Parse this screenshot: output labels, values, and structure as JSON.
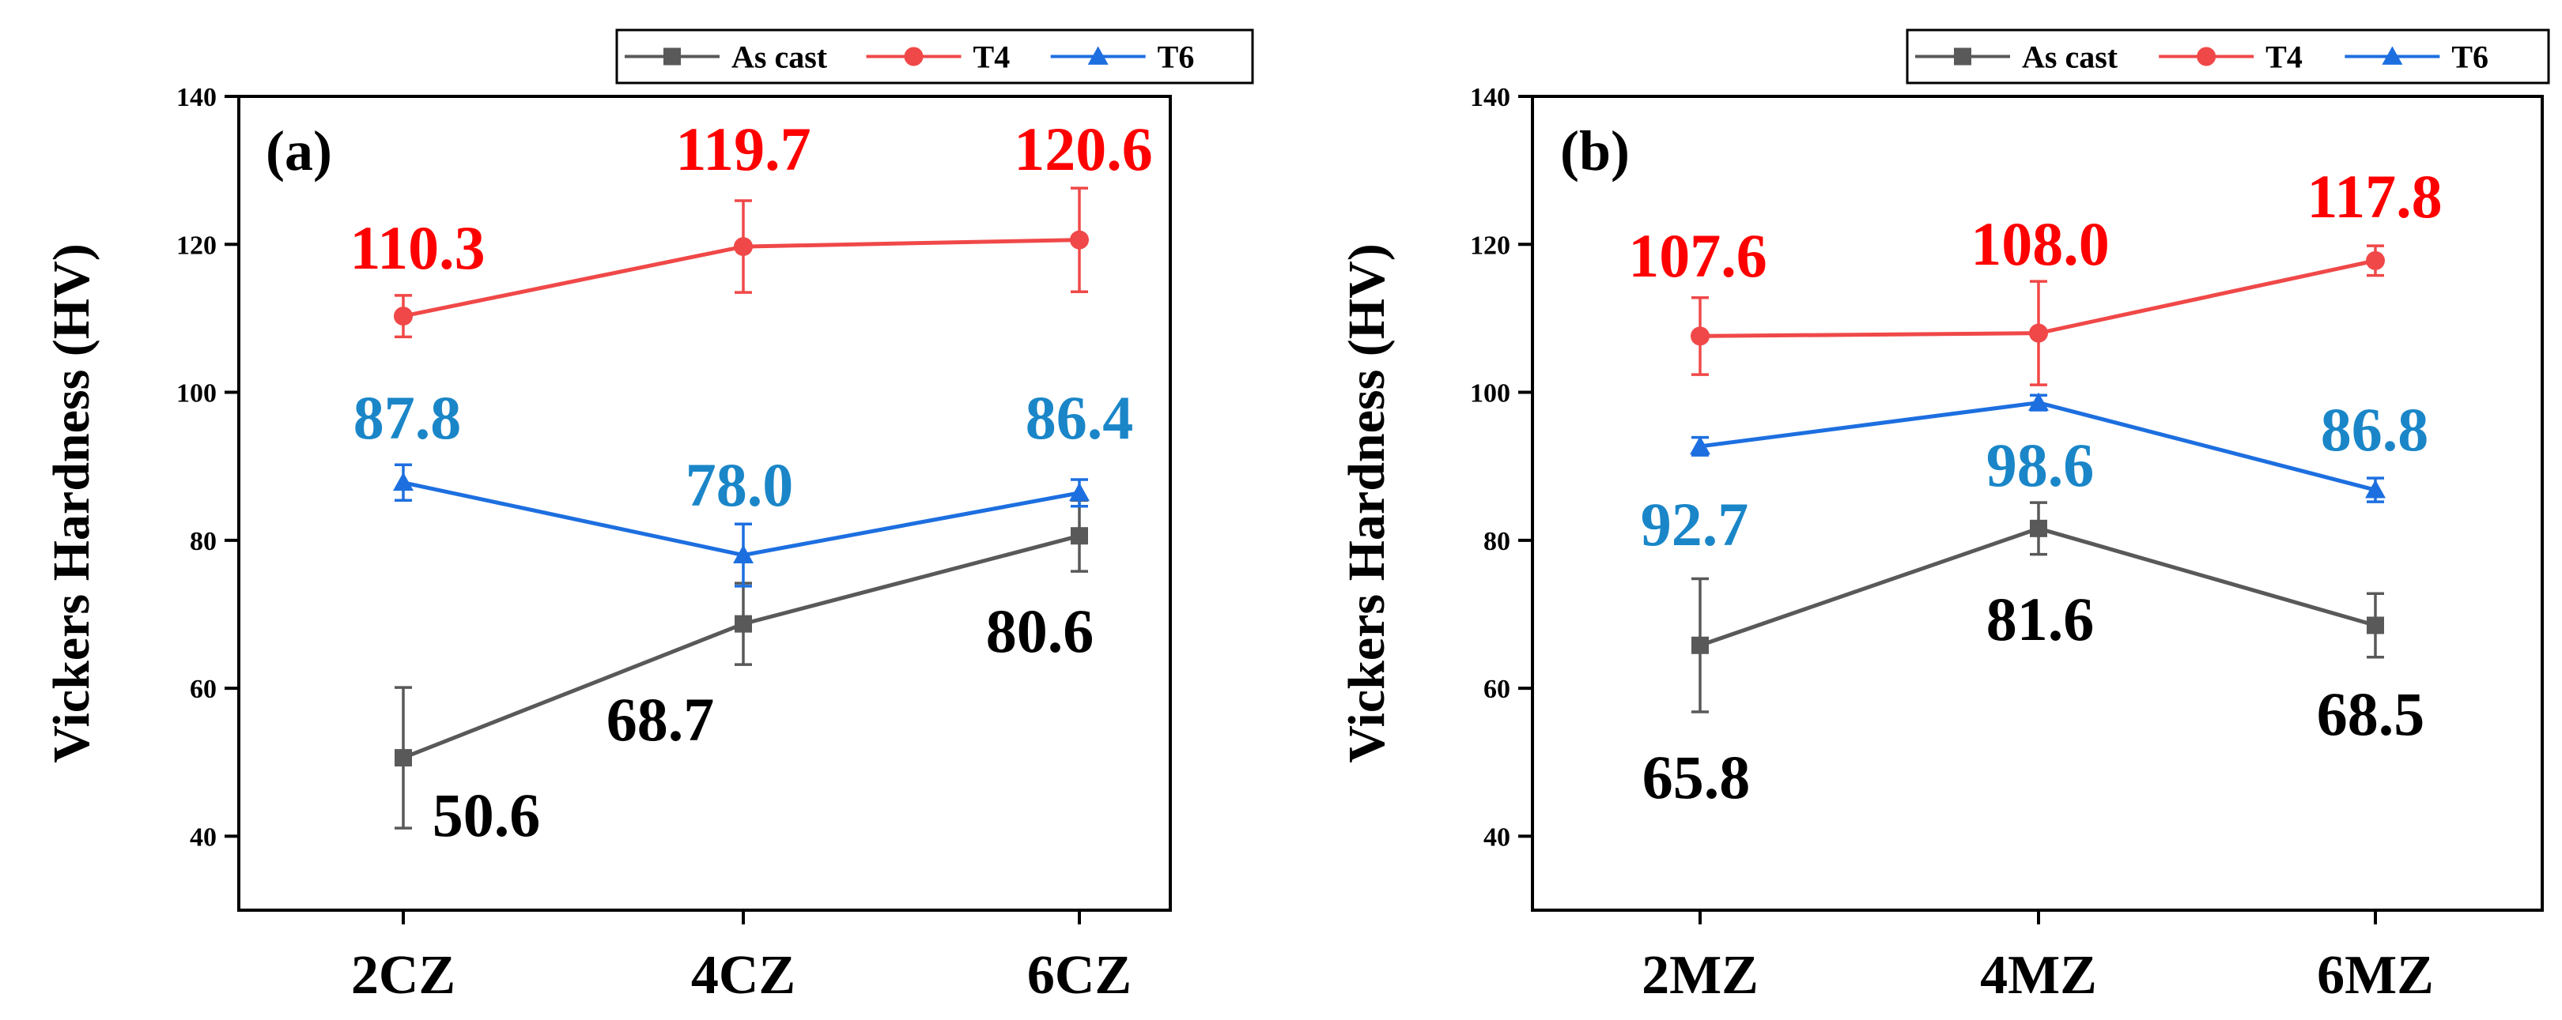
{
  "colors": {
    "As cast": "#595959",
    "T4": "#f04848",
    "T6": "#1d6fe0",
    "T6_label": "#1a86c8",
    "As cast_label": "#000000",
    "T4_label": "#ff0000",
    "axis": "#000000"
  },
  "chart_data": [
    {
      "type": "line",
      "panel_label": "(a)",
      "categories": [
        "2CZ",
        "4CZ",
        "6CZ"
      ],
      "ylabel": "Vickers Hardness (HV)",
      "xlabel": "",
      "ylim": [
        30,
        140
      ],
      "yticks": [
        40,
        60,
        80,
        100,
        120,
        140
      ],
      "legend": {
        "placement": "top-right-outside",
        "entries": [
          "As cast",
          "T4",
          "T6"
        ]
      },
      "series": [
        {
          "name": "As cast",
          "marker": "square",
          "values": [
            50.6,
            68.7,
            80.6
          ],
          "errors": [
            9.5,
            5.5,
            4.8
          ],
          "labels": [
            "50.6",
            "68.7",
            "80.6"
          ]
        },
        {
          "name": "T4",
          "marker": "circle",
          "values": [
            110.3,
            119.7,
            120.6
          ],
          "errors": [
            2.8,
            6.2,
            7.0
          ],
          "labels": [
            "110.3",
            "119.7",
            "120.6"
          ]
        },
        {
          "name": "T6",
          "marker": "triangle",
          "values": [
            87.8,
            78.0,
            86.4
          ],
          "errors": [
            2.4,
            4.2,
            1.8
          ],
          "labels": [
            "87.8",
            "78.0",
            "86.4"
          ]
        }
      ]
    },
    {
      "type": "line",
      "panel_label": "(b)",
      "categories": [
        "2MZ",
        "4MZ",
        "6MZ"
      ],
      "ylabel": "Vickers Hardness (HV)",
      "xlabel": "",
      "ylim": [
        30,
        140
      ],
      "yticks": [
        40,
        60,
        80,
        100,
        120,
        140
      ],
      "legend": {
        "placement": "top-right-outside",
        "entries": [
          "As cast",
          "T4",
          "T6"
        ]
      },
      "series": [
        {
          "name": "As cast",
          "marker": "square",
          "values": [
            65.8,
            81.6,
            68.5
          ],
          "errors": [
            9.0,
            3.5,
            4.3
          ],
          "labels": [
            "65.8",
            "81.6",
            "68.5"
          ]
        },
        {
          "name": "T4",
          "marker": "circle",
          "values": [
            107.6,
            108.0,
            117.8
          ],
          "errors": [
            5.2,
            7.0,
            2.0
          ],
          "labels": [
            "107.6",
            "108.0",
            "117.8"
          ]
        },
        {
          "name": "T6",
          "marker": "triangle",
          "values": [
            92.7,
            98.6,
            86.8
          ],
          "errors": [
            1.2,
            1.0,
            1.6
          ],
          "labels": [
            "92.7",
            "98.6",
            "86.8"
          ]
        }
      ]
    }
  ]
}
